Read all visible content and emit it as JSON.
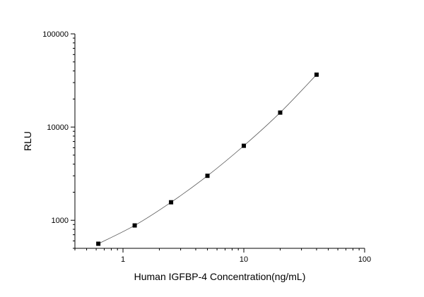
{
  "chart_data": {
    "type": "scatter",
    "xlabel": "Human IGFBP-4 Concentration(ng/mL)",
    "ylabel": "RLU",
    "x_scale": "log",
    "y_scale": "log",
    "xlim": [
      0.4,
      100
    ],
    "ylim": [
      500,
      100000
    ],
    "x_ticks": [
      1,
      10,
      100
    ],
    "x_tick_labels": [
      "1",
      "10",
      "100"
    ],
    "y_ticks": [
      1000,
      10000,
      100000
    ],
    "y_tick_labels": [
      "1000",
      "10000",
      "100000"
    ],
    "grid": false,
    "series": [
      {
        "x": [
          0.625,
          1.25,
          2.5,
          5,
          10,
          20,
          40
        ],
        "y": [
          560,
          880,
          1560,
          3000,
          6300,
          14300,
          36500
        ]
      }
    ],
    "fit_curve": true
  }
}
